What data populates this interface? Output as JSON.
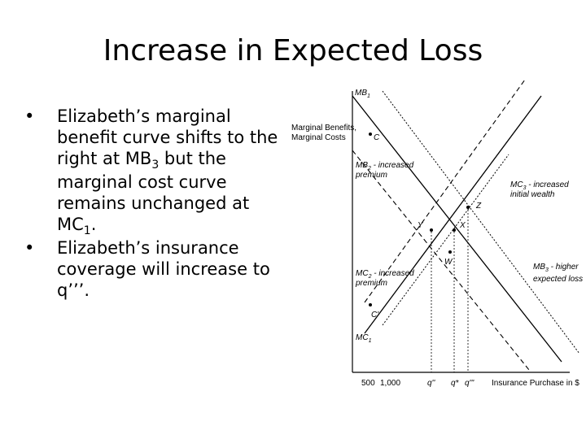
{
  "title": "Increase in Expected Loss",
  "bullets": [
    {
      "dot": "•",
      "parts": [
        {
          "t": "Elizabeth’s marginal benefit curve shifts to the right at MB"
        },
        {
          "t": "3",
          "sub": true
        },
        {
          "t": " but the marginal cost curve remains unchanged at MC"
        },
        {
          "t": "1",
          "sub": true
        },
        {
          "t": "."
        }
      ]
    },
    {
      "dot": "•",
      "parts": [
        {
          "t": "Elizabeth’s insurance coverage will increase to q’’’."
        }
      ]
    }
  ],
  "diagram": {
    "y_axis_top": "MB",
    "y_axis_top_sub": "1",
    "y_axis_label_1": "Marginal Benefits,",
    "y_axis_label_2": "Marginal Costs",
    "x_axis_label": "Insurance Purchase in $",
    "x_ticks": [
      "500",
      "1,000",
      "q''",
      "q*",
      "q'''"
    ],
    "mb2_label_1": "MB",
    "mb2_sub": "2",
    "mb2_label_2": " - increased",
    "mb2_label_3": "premium",
    "mc2_label_1": "MC",
    "mc2_sub": "2",
    "mc2_label_2": " - increased",
    "mc2_label_3": "premium",
    "mc1_label": "MC",
    "mc1_sub": "1",
    "mc3_label_1": "MC",
    "mc3_sub": "3",
    "mc3_label_2": " - increased",
    "mc3_label_3": "initial wealth",
    "mb3_label_1": "MB",
    "mb3_sub": "3",
    "mb3_label_2": " - higher",
    "mb3_label_3": "expected loss",
    "points": {
      "C": "C",
      "Cp": "C'",
      "Y": "Y",
      "X": "X",
      "Z": "Z",
      "W": "W"
    }
  }
}
